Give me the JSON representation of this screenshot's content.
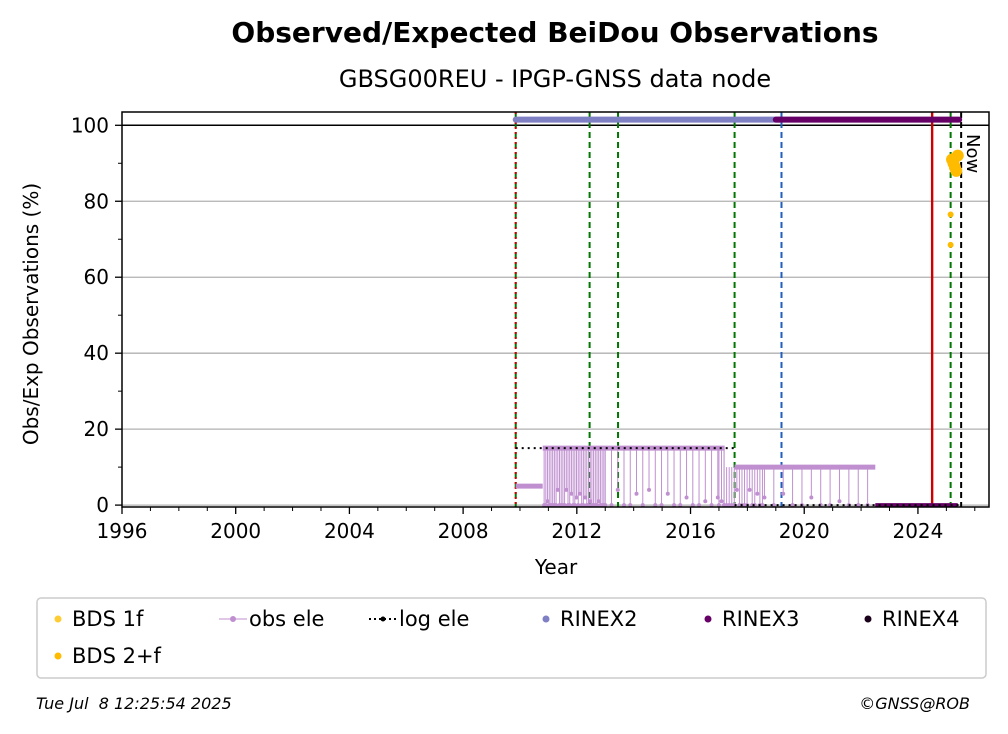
{
  "chart_data": {
    "type": "scatter",
    "title": "Observed/Expected BeiDou Observations",
    "subtitle": "GBSG00REU - IPGP-GNSS data node",
    "xlabel": "Year",
    "ylabel": "Obs/Exp Observations (%)",
    "xlim": [
      1996,
      2026.5
    ],
    "ylim": [
      -0.5,
      103.5
    ],
    "x_ticks": [
      "1996",
      "2000",
      "2004",
      "2008",
      "2012",
      "2016",
      "2020",
      "2024"
    ],
    "y_ticks": [
      "0",
      "20",
      "40",
      "60",
      "80",
      "100"
    ],
    "grid": "horizontal",
    "legend_position": "bottom",
    "legend": [
      "BDS 1f",
      "obs ele",
      "log ele",
      "RINEX2",
      "RINEX3",
      "RINEX4",
      "BDS 2+f"
    ],
    "now_label": "Now",
    "colors": {
      "bds1f": "#ffcc33",
      "bds2f": "#ffbb00",
      "obs_ele": "#c08fd0",
      "log_ele": "#000000",
      "rinex2": "#7f7fc4",
      "rinex3": "#660066",
      "rinex4": "#1a001a",
      "green_event": "#007700",
      "blue_event": "#1f5fbf",
      "red_event": "#cc0000"
    },
    "vertical_markers": [
      {
        "x": 2009.85,
        "color": "green_event",
        "style": "dashed"
      },
      {
        "x": 2009.85,
        "color": "red_event",
        "style": "dotted"
      },
      {
        "x": 2012.45,
        "color": "green_event",
        "style": "dashed"
      },
      {
        "x": 2013.45,
        "color": "green_event",
        "style": "dashed"
      },
      {
        "x": 2017.55,
        "color": "green_event",
        "style": "dashed"
      },
      {
        "x": 2019.2,
        "color": "blue_event",
        "style": "dashed"
      },
      {
        "x": 2024.5,
        "color": "red_event",
        "style": "solid"
      },
      {
        "x": 2025.15,
        "color": "green_event",
        "style": "dashed"
      },
      {
        "x": 2025.52,
        "color": "log_ele",
        "style": "dashed"
      }
    ],
    "rinex_bars": [
      {
        "series": "RINEX2",
        "x_start": 2009.85,
        "x_end": 2019.2,
        "y": 101.5
      },
      {
        "series": "RINEX3",
        "x_start": 2019.0,
        "x_end": 2025.45,
        "y": 101.5
      }
    ],
    "log_ele": [
      {
        "x_start": 2009.85,
        "x_end": 2017.55,
        "y": 15
      },
      {
        "x_start": 2017.55,
        "x_end": 2025.5,
        "y": 0
      }
    ],
    "obs_ele": [
      {
        "x_start": 2009.85,
        "x_end": 2010.8,
        "y": 5
      },
      {
        "x_start": 2010.8,
        "x_end": 2017.2,
        "y": 15
      },
      {
        "x_start": 2017.55,
        "x_end": 2022.5,
        "y": 10
      },
      {
        "x_start": 2022.5,
        "x_end": 2025.4,
        "y": 0
      }
    ],
    "bds2f_points": [
      {
        "x": 2025.15,
        "y": 76.5
      },
      {
        "x": 2025.15,
        "y": 68.5
      },
      {
        "x": 2025.2,
        "y": 91
      },
      {
        "x": 2025.25,
        "y": 90
      },
      {
        "x": 2025.3,
        "y": 89
      },
      {
        "x": 2025.35,
        "y": 88
      },
      {
        "x": 2025.4,
        "y": 92
      }
    ]
  },
  "footer": {
    "timestamp": "Tue Jul  8 12:25:54 2025",
    "credit": "©GNSS@ROB"
  }
}
